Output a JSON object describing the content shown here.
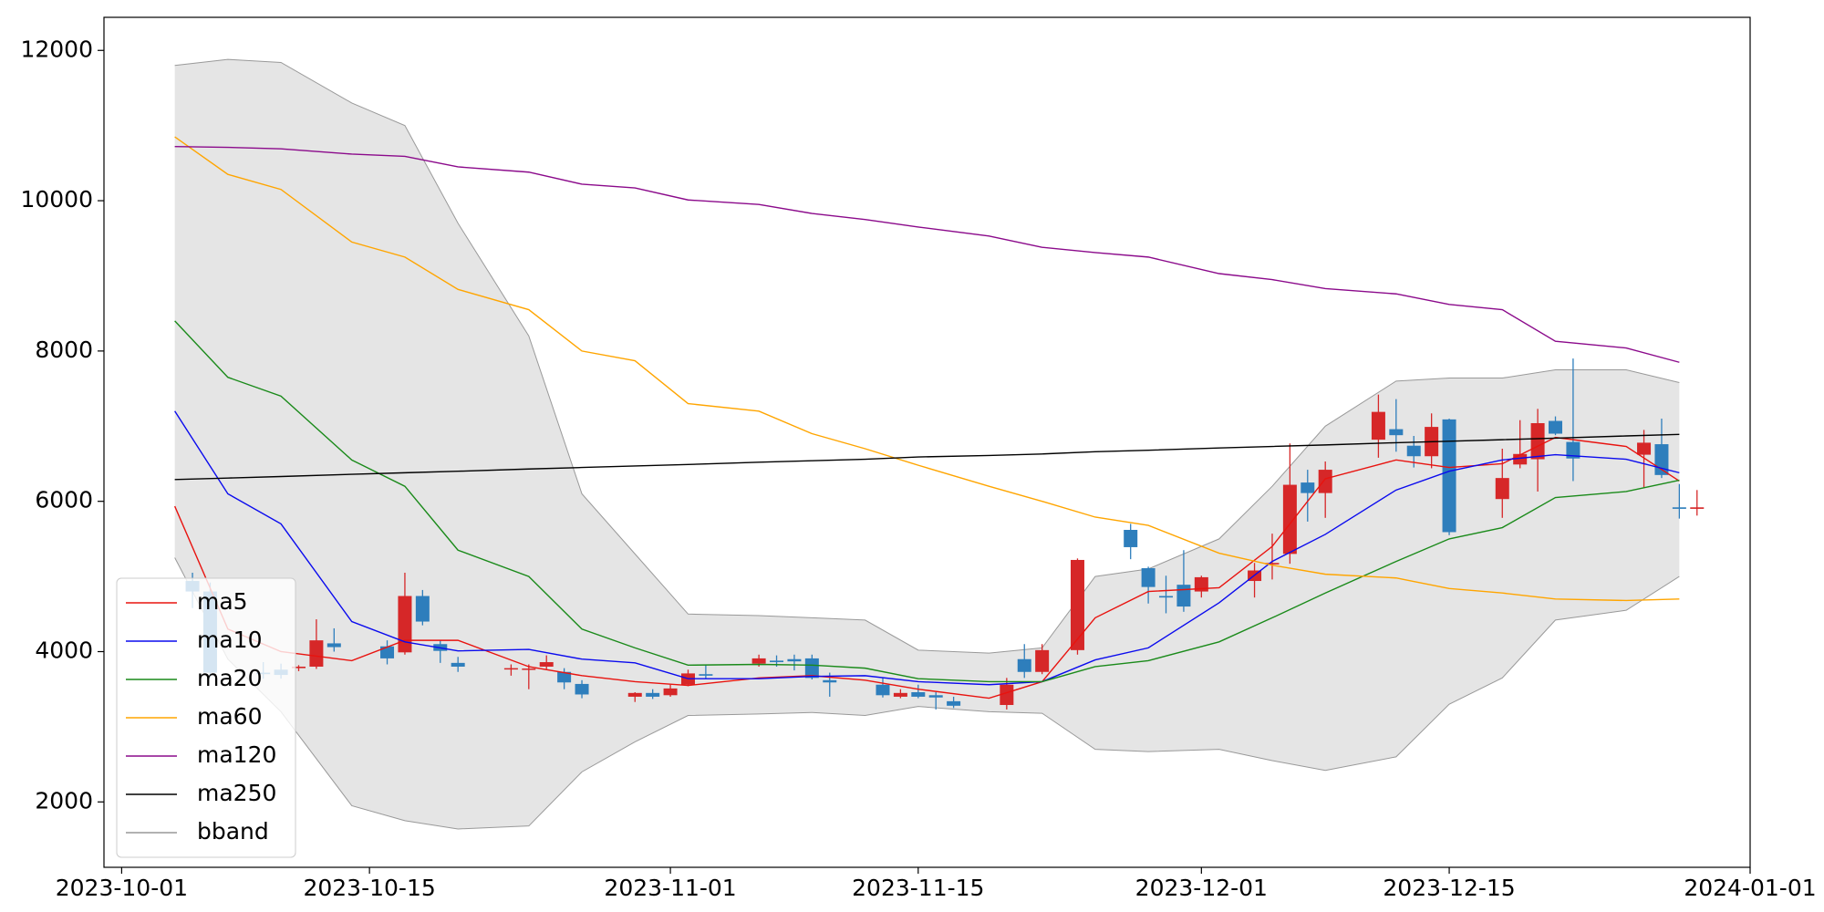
{
  "chart_data": {
    "type": "candlestick",
    "dates": [
      "2023-10-05",
      "2023-10-06",
      "2023-10-09",
      "2023-10-10",
      "2023-10-11",
      "2023-10-12",
      "2023-10-13",
      "2023-10-16",
      "2023-10-17",
      "2023-10-18",
      "2023-10-19",
      "2023-10-20",
      "2023-10-23",
      "2023-10-24",
      "2023-10-25",
      "2023-10-26",
      "2023-10-27",
      "2023-10-30",
      "2023-10-31",
      "2023-11-01",
      "2023-11-02",
      "2023-11-03",
      "2023-11-06",
      "2023-11-07",
      "2023-11-08",
      "2023-11-09",
      "2023-11-10",
      "2023-11-13",
      "2023-11-14",
      "2023-11-15",
      "2023-11-16",
      "2023-11-17",
      "2023-11-20",
      "2023-11-21",
      "2023-11-22",
      "2023-11-24",
      "2023-11-27",
      "2023-11-28",
      "2023-11-29",
      "2023-11-30",
      "2023-12-01",
      "2023-12-04",
      "2023-12-05",
      "2023-12-06",
      "2023-12-07",
      "2023-12-08",
      "2023-12-11",
      "2023-12-12",
      "2023-12-13",
      "2023-12-14",
      "2023-12-15",
      "2023-12-18",
      "2023-12-19",
      "2023-12-20",
      "2023-12-21",
      "2023-12-22",
      "2023-12-26",
      "2023-12-27",
      "2023-12-28",
      "2023-12-29"
    ],
    "open": [
      4940,
      4800,
      3720,
      3760,
      3780,
      3800,
      4110,
      4070,
      3990,
      4740,
      4100,
      3850,
      3770,
      3760,
      3800,
      3730,
      3570,
      3400,
      3450,
      3420,
      3560,
      3700,
      3840,
      3880,
      3900,
      3910,
      3620,
      3560,
      3400,
      3460,
      3420,
      3340,
      3290,
      3900,
      3730,
      4020,
      5620,
      5110,
      4740,
      4890,
      4800,
      4940,
      5160,
      5300,
      6250,
      6110,
      6820,
      6960,
      6740,
      6600,
      7090,
      6030,
      6490,
      6560,
      7070,
      6790,
      6620,
      6760,
      5920,
      5900
    ],
    "high": [
      5050,
      4920,
      3860,
      3840,
      3820,
      4430,
      4310,
      4150,
      5050,
      4820,
      4150,
      3930,
      3830,
      3830,
      3950,
      3780,
      3620,
      3460,
      3500,
      3560,
      3760,
      3830,
      3960,
      3950,
      3960,
      3960,
      3720,
      3650,
      3500,
      3560,
      3460,
      3400,
      3650,
      4100,
      4100,
      5240,
      5700,
      5130,
      5010,
      5350,
      5010,
      5180,
      5570,
      6770,
      6420,
      6530,
      7420,
      7360,
      6870,
      7170,
      7100,
      6700,
      7080,
      7230,
      7130,
      7900,
      6950,
      7100,
      6230,
      6150
    ],
    "low": [
      4580,
      3650,
      3640,
      3640,
      3740,
      3770,
      4000,
      3830,
      3960,
      4350,
      3850,
      3730,
      3680,
      3500,
      3770,
      3500,
      3380,
      3330,
      3370,
      3400,
      3540,
      3640,
      3800,
      3800,
      3750,
      3630,
      3400,
      3390,
      3380,
      3380,
      3230,
      3250,
      3230,
      3650,
      3700,
      3960,
      5230,
      4640,
      4510,
      4530,
      4720,
      4720,
      4960,
      5170,
      5730,
      5780,
      6580,
      6660,
      6450,
      6440,
      5550,
      5780,
      6440,
      6130,
      6880,
      6270,
      6180,
      6310,
      5770,
      5810
    ],
    "close": [
      4800,
      3720,
      3700,
      3690,
      3800,
      4150,
      4060,
      3910,
      4740,
      4400,
      4010,
      3800,
      3780,
      3775,
      3860,
      3590,
      3430,
      3450,
      3400,
      3510,
      3710,
      3680,
      3910,
      3860,
      3870,
      3650,
      3590,
      3420,
      3450,
      3400,
      3390,
      3280,
      3560,
      3730,
      4020,
      5220,
      5390,
      4860,
      4720,
      4600,
      4990,
      5080,
      5180,
      6220,
      6110,
      6420,
      7190,
      6880,
      6600,
      6990,
      5590,
      6310,
      6630,
      7040,
      6900,
      6570,
      6780,
      6350,
      5900,
      5920
    ],
    "up_color": "#d62728",
    "down_color": "#2e7ebc",
    "x": [
      "2023-10-04",
      "2023-10-07",
      "2023-10-10",
      "2023-10-14",
      "2023-10-17",
      "2023-10-20",
      "2023-10-24",
      "2023-10-27",
      "2023-10-30",
      "2023-11-02",
      "2023-11-06",
      "2023-11-09",
      "2023-11-12",
      "2023-11-15",
      "2023-11-19",
      "2023-11-22",
      "2023-11-25",
      "2023-11-28",
      "2023-12-02",
      "2023-12-05",
      "2023-12-08",
      "2023-12-12",
      "2023-12-15",
      "2023-12-18",
      "2023-12-21",
      "2023-12-25",
      "2023-12-28"
    ],
    "series": [
      {
        "name": "ma5",
        "color": "#e8130f",
        "values": [
          5935,
          4300,
          4000,
          3880,
          4150,
          4150,
          3800,
          3680,
          3600,
          3550,
          3650,
          3680,
          3620,
          3500,
          3380,
          3600,
          4450,
          4800,
          4850,
          5400,
          6300,
          6550,
          6450,
          6500,
          6850,
          6730,
          6270
        ]
      },
      {
        "name": "ma10",
        "color": "#0a0aee",
        "values": [
          7200,
          6100,
          5700,
          4400,
          4130,
          4010,
          4030,
          3900,
          3850,
          3640,
          3640,
          3670,
          3680,
          3600,
          3560,
          3600,
          3890,
          4050,
          4650,
          5200,
          5560,
          6150,
          6400,
          6550,
          6620,
          6560,
          6380
        ]
      },
      {
        "name": "ma20",
        "color": "#1a8a1a",
        "values": [
          8400,
          7650,
          7400,
          6550,
          6200,
          5350,
          5000,
          4300,
          4050,
          3820,
          3830,
          3820,
          3780,
          3640,
          3600,
          3600,
          3800,
          3880,
          4130,
          4450,
          4780,
          5200,
          5500,
          5650,
          6050,
          6130,
          6280
        ]
      },
      {
        "name": "ma60",
        "color": "#ffa500",
        "values": [
          10850,
          10350,
          10150,
          9450,
          9250,
          8820,
          8550,
          8000,
          7870,
          7300,
          7200,
          6900,
          6700,
          6480,
          6200,
          6000,
          5790,
          5680,
          5310,
          5150,
          5030,
          4980,
          4840,
          4780,
          4700,
          4680,
          4700
        ]
      },
      {
        "name": "ma120",
        "color": "#8b0a8b",
        "values": [
          10720,
          10710,
          10690,
          10620,
          10590,
          10450,
          10380,
          10220,
          10170,
          10010,
          9950,
          9830,
          9750,
          9650,
          9530,
          9380,
          9310,
          9250,
          9030,
          8950,
          8830,
          8760,
          8620,
          8550,
          8130,
          8040,
          7850
        ]
      },
      {
        "name": "ma250",
        "color": "#000000",
        "values": [
          6290,
          6310,
          6330,
          6360,
          6380,
          6400,
          6430,
          6450,
          6470,
          6490,
          6520,
          6540,
          6560,
          6590,
          6610,
          6630,
          6660,
          6680,
          6710,
          6730,
          6750,
          6780,
          6800,
          6820,
          6840,
          6870,
          6890
        ]
      }
    ],
    "bband": {
      "name": "bband",
      "color": "#999999",
      "fill": "#e5e5e5",
      "upper": [
        11800,
        11880,
        11840,
        11300,
        11000,
        9700,
        8200,
        6100,
        5300,
        4500,
        4480,
        4450,
        4420,
        4020,
        3980,
        4050,
        5000,
        5100,
        5500,
        6200,
        7000,
        7600,
        7640,
        7640,
        7750,
        7750,
        7580
      ],
      "lower": [
        5250,
        3900,
        3200,
        1950,
        1750,
        1640,
        1680,
        2400,
        2800,
        3150,
        3170,
        3190,
        3150,
        3270,
        3200,
        3180,
        2700,
        2670,
        2700,
        2550,
        2420,
        2600,
        3300,
        3650,
        4420,
        4550,
        5000
      ]
    },
    "xlim": [
      "2023-09-30",
      "2024-01-01"
    ],
    "ylim": [
      1130,
      12440
    ],
    "xticks": [
      "2023-10-01",
      "2023-10-15",
      "2023-11-01",
      "2023-11-15",
      "2023-12-01",
      "2023-12-15",
      "2024-01-01"
    ],
    "yticks": [
      2000,
      4000,
      6000,
      8000,
      10000,
      12000
    ],
    "legend": "lower left"
  }
}
